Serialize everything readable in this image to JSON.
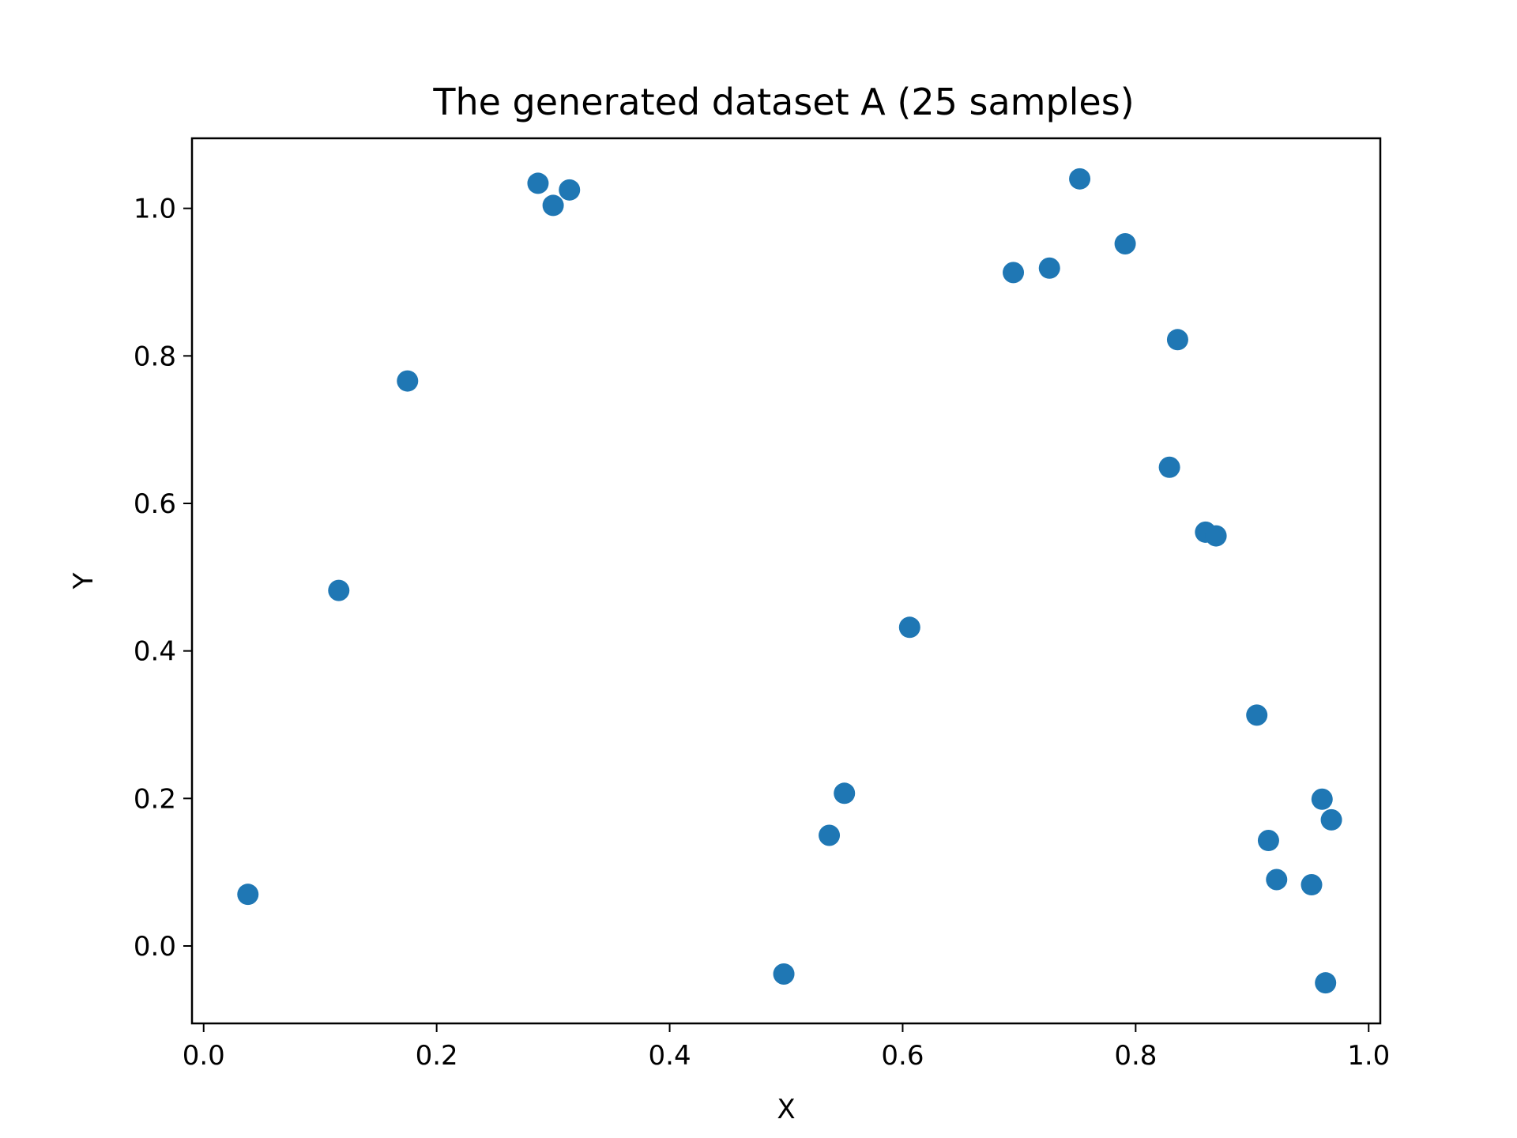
{
  "chart_data": {
    "type": "scatter",
    "title": "The generated dataset A (25 samples)",
    "xlabel": "X",
    "ylabel": "Y",
    "xlim": [
      -0.01,
      1.01
    ],
    "ylim": [
      -0.105,
      1.095
    ],
    "xticks": [
      0.0,
      0.2,
      0.4,
      0.6,
      0.8,
      1.0
    ],
    "xtick_labels": [
      "0.0",
      "0.2",
      "0.4",
      "0.6",
      "0.8",
      "1.0"
    ],
    "yticks": [
      0.0,
      0.2,
      0.4,
      0.6,
      0.8,
      1.0
    ],
    "ytick_labels": [
      "0.0",
      "0.2",
      "0.4",
      "0.6",
      "0.8",
      "1.0"
    ],
    "grid": false,
    "marker_color": "#1f77b4",
    "series": [
      {
        "points": [
          {
            "x": 0.038,
            "y": 0.07
          },
          {
            "x": 0.116,
            "y": 0.482
          },
          {
            "x": 0.175,
            "y": 0.766
          },
          {
            "x": 0.287,
            "y": 1.034
          },
          {
            "x": 0.3,
            "y": 1.004
          },
          {
            "x": 0.314,
            "y": 1.025
          },
          {
            "x": 0.498,
            "y": -0.038
          },
          {
            "x": 0.537,
            "y": 0.15
          },
          {
            "x": 0.55,
            "y": 0.207
          },
          {
            "x": 0.606,
            "y": 0.432
          },
          {
            "x": 0.695,
            "y": 0.913
          },
          {
            "x": 0.726,
            "y": 0.919
          },
          {
            "x": 0.752,
            "y": 1.04
          },
          {
            "x": 0.791,
            "y": 0.952
          },
          {
            "x": 0.836,
            "y": 0.822
          },
          {
            "x": 0.829,
            "y": 0.649
          },
          {
            "x": 0.86,
            "y": 0.561
          },
          {
            "x": 0.869,
            "y": 0.556
          },
          {
            "x": 0.904,
            "y": 0.313
          },
          {
            "x": 0.96,
            "y": 0.199
          },
          {
            "x": 0.968,
            "y": 0.171
          },
          {
            "x": 0.914,
            "y": 0.143
          },
          {
            "x": 0.921,
            "y": 0.09
          },
          {
            "x": 0.951,
            "y": 0.083
          },
          {
            "x": 0.963,
            "y": -0.05
          }
        ]
      }
    ]
  }
}
